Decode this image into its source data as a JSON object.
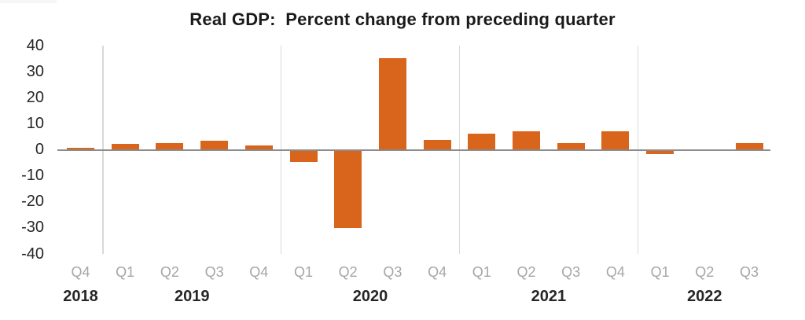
{
  "chart_data": {
    "type": "bar",
    "title": "Real GDP:  Percent change from preceding quarter",
    "categories": [
      "Q4",
      "Q1",
      "Q2",
      "Q3",
      "Q4",
      "Q1",
      "Q2",
      "Q3",
      "Q4",
      "Q1",
      "Q2",
      "Q3",
      "Q4",
      "Q1",
      "Q2",
      "Q3"
    ],
    "values": [
      0.9,
      2.2,
      2.7,
      3.6,
      1.8,
      -4.6,
      -29.9,
      35.3,
      3.9,
      6.3,
      7.0,
      2.7,
      7.0,
      -1.6,
      -0.6,
      2.6
    ],
    "year_groups": [
      {
        "label": "2018",
        "count": 1
      },
      {
        "label": "2019",
        "count": 4
      },
      {
        "label": "2020",
        "count": 4
      },
      {
        "label": "2021",
        "count": 4
      },
      {
        "label": "2022",
        "count": 3
      }
    ],
    "yticks": [
      40,
      30,
      20,
      10,
      0,
      -10,
      -20,
      -30,
      -40
    ],
    "ylim": [
      -40,
      40
    ],
    "xlabel": "",
    "ylabel": "",
    "legend": null,
    "grid": "vertical-year-separators",
    "colors": {
      "bar": "#D9641C",
      "axis_line": "#8C8C8C",
      "gridline": "#D9D9D9",
      "quarter_label": "#A6A6A6",
      "year_label": "#262626",
      "ytick_label": "#262626",
      "title": "#1A1A1A"
    }
  }
}
